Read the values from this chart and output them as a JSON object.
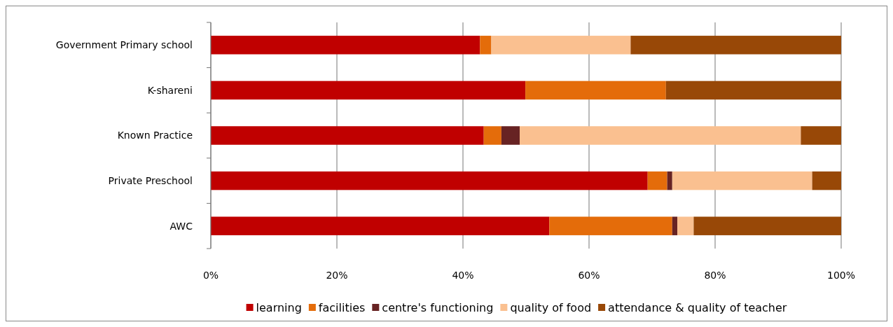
{
  "chart_data": {
    "type": "bar",
    "orientation": "horizontal",
    "stacked": true,
    "categories": [
      "Government Primary school",
      "K-shareni",
      "Known Practice",
      "Private Preschool",
      "AWC"
    ],
    "series": [
      {
        "name": "learning",
        "color": "#c00000",
        "values": [
          42.7,
          49.9,
          43.3,
          69.3,
          53.7
        ]
      },
      {
        "name": "facilities",
        "color": "#e46c0a",
        "values": [
          1.8,
          22.3,
          2.8,
          3.1,
          19.5
        ]
      },
      {
        "name": "centre's functioning",
        "color": "#672323",
        "values": [
          0,
          0,
          2.9,
          0.8,
          0.8
        ]
      },
      {
        "name": "quality of food",
        "color": "#fac090",
        "values": [
          22.1,
          0,
          44.6,
          22.2,
          2.6
        ]
      },
      {
        "name": "attendance & quality of teacher",
        "color": "#984807",
        "values": [
          33.4,
          27.8,
          6.4,
          4.6,
          23.4
        ]
      }
    ],
    "xlim": [
      0,
      100
    ],
    "xticks": [
      {
        "value": 0,
        "label": "0%"
      },
      {
        "value": 20,
        "label": "20%"
      },
      {
        "value": 40,
        "label": "40%"
      },
      {
        "value": 60,
        "label": "60%"
      },
      {
        "value": 80,
        "label": "80%"
      },
      {
        "value": 100,
        "label": "100%"
      }
    ],
    "grid": "x",
    "legend": "bottom"
  }
}
